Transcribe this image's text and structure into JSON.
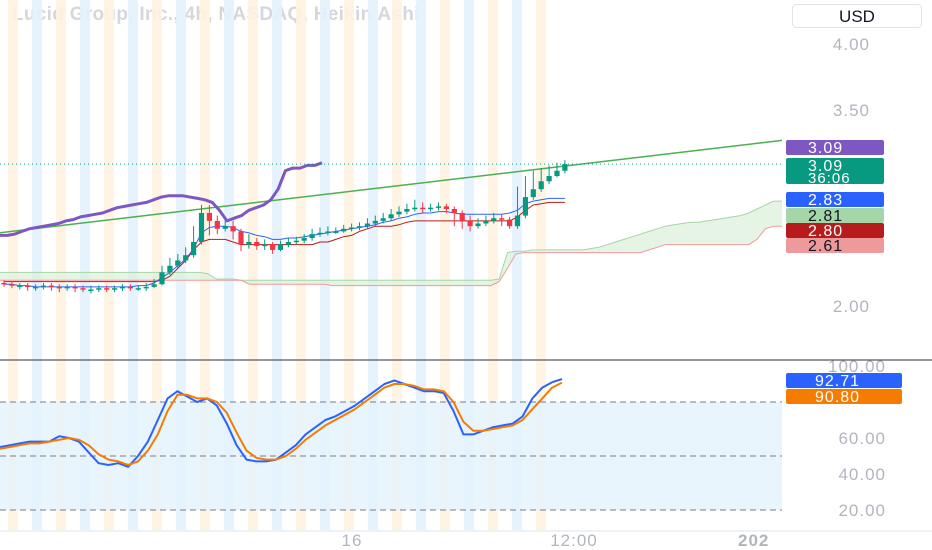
{
  "header": {
    "title": "Lucid Group, Inc., 4h, NASDAQ, Heikin Ashi",
    "currency": "USD"
  },
  "colors": {
    "up": "#089981",
    "down": "#f23645",
    "trendline": "#4caf50",
    "purple": "#7e57c2",
    "blue": "#2962ff",
    "red_line": "#b71c1c",
    "orange": "#f57c00",
    "cloud_fill": "#dcefdc",
    "stoch_band": "#e3f2fd",
    "session_orange": "#fff3e0",
    "session_blue": "#e3f2fd"
  },
  "chart_data": [
    {
      "type": "candlestick",
      "title": "Lucid Group, Inc., 4h, NASDAQ, Heikin Ashi",
      "y_ticks": [
        "4.00",
        "3.50",
        "2.00"
      ],
      "x_ticks": [
        "16",
        "12:00",
        "202"
      ],
      "price_labels": [
        {
          "text": "3.09",
          "color": "#7e57c2",
          "value": 3.09
        },
        {
          "text": "3.09",
          "sub": "36:06",
          "color": "#089981",
          "value": 3.09
        },
        {
          "text": "2.83",
          "color": "#2962ff",
          "value": 2.83
        },
        {
          "text": "2.81",
          "color": "#a5d6a7",
          "value": 2.81
        },
        {
          "text": "2.80",
          "color": "#b71c1c",
          "value": 2.8
        },
        {
          "text": "2.61",
          "color": "#ef9a9a",
          "value": 2.61
        }
      ],
      "candles": [
        [
          2.19,
          2.18,
          2.21,
          2.16
        ],
        [
          2.18,
          2.17,
          2.2,
          2.15
        ],
        [
          2.17,
          2.17,
          2.19,
          2.14
        ],
        [
          2.17,
          2.16,
          2.19,
          2.13
        ],
        [
          2.16,
          2.16,
          2.18,
          2.13
        ],
        [
          2.16,
          2.17,
          2.19,
          2.14
        ],
        [
          2.17,
          2.16,
          2.19,
          2.13
        ],
        [
          2.16,
          2.15,
          2.18,
          2.12
        ],
        [
          2.15,
          2.16,
          2.18,
          2.13
        ],
        [
          2.16,
          2.15,
          2.18,
          2.12
        ],
        [
          2.15,
          2.14,
          2.17,
          2.12
        ],
        [
          2.14,
          2.14,
          2.17,
          2.11
        ],
        [
          2.14,
          2.15,
          2.17,
          2.12
        ],
        [
          2.15,
          2.14,
          2.17,
          2.12
        ],
        [
          2.14,
          2.15,
          2.17,
          2.12
        ],
        [
          2.15,
          2.16,
          2.18,
          2.13
        ],
        [
          2.16,
          2.15,
          2.18,
          2.13
        ],
        [
          2.15,
          2.15,
          2.17,
          2.13
        ],
        [
          2.15,
          2.16,
          2.19,
          2.13
        ],
        [
          2.16,
          2.18,
          2.22,
          2.15
        ],
        [
          2.18,
          2.27,
          2.32,
          2.17
        ],
        [
          2.27,
          2.32,
          2.38,
          2.25
        ],
        [
          2.32,
          2.36,
          2.41,
          2.3
        ],
        [
          2.36,
          2.4,
          2.46,
          2.34
        ],
        [
          2.4,
          2.5,
          2.62,
          2.38
        ],
        [
          2.5,
          2.72,
          2.78,
          2.48
        ],
        [
          2.72,
          2.66,
          2.78,
          2.55
        ],
        [
          2.66,
          2.6,
          2.7,
          2.56
        ],
        [
          2.6,
          2.62,
          2.66,
          2.58
        ],
        [
          2.62,
          2.58,
          2.66,
          2.52
        ],
        [
          2.58,
          2.48,
          2.6,
          2.43
        ],
        [
          2.48,
          2.5,
          2.56,
          2.45
        ],
        [
          2.5,
          2.47,
          2.53,
          2.44
        ],
        [
          2.47,
          2.48,
          2.52,
          2.44
        ],
        [
          2.48,
          2.44,
          2.5,
          2.41
        ],
        [
          2.44,
          2.48,
          2.51,
          2.43
        ],
        [
          2.48,
          2.5,
          2.53,
          2.46
        ],
        [
          2.5,
          2.51,
          2.54,
          2.48
        ],
        [
          2.51,
          2.53,
          2.56,
          2.49
        ],
        [
          2.53,
          2.56,
          2.6,
          2.51
        ],
        [
          2.56,
          2.57,
          2.61,
          2.54
        ],
        [
          2.57,
          2.58,
          2.62,
          2.55
        ],
        [
          2.58,
          2.58,
          2.61,
          2.56
        ],
        [
          2.58,
          2.6,
          2.63,
          2.57
        ],
        [
          2.6,
          2.61,
          2.64,
          2.58
        ],
        [
          2.61,
          2.62,
          2.65,
          2.59
        ],
        [
          2.62,
          2.64,
          2.68,
          2.6
        ],
        [
          2.64,
          2.66,
          2.7,
          2.62
        ],
        [
          2.66,
          2.68,
          2.72,
          2.64
        ],
        [
          2.68,
          2.71,
          2.75,
          2.66
        ],
        [
          2.71,
          2.73,
          2.77,
          2.69
        ],
        [
          2.73,
          2.75,
          2.79,
          2.71
        ],
        [
          2.75,
          2.76,
          2.82,
          2.73
        ],
        [
          2.76,
          2.75,
          2.8,
          2.72
        ],
        [
          2.75,
          2.76,
          2.79,
          2.73
        ],
        [
          2.76,
          2.77,
          2.8,
          2.74
        ],
        [
          2.77,
          2.75,
          2.79,
          2.72
        ],
        [
          2.75,
          2.72,
          2.77,
          2.62
        ],
        [
          2.72,
          2.66,
          2.74,
          2.6
        ],
        [
          2.66,
          2.62,
          2.7,
          2.58
        ],
        [
          2.62,
          2.64,
          2.68,
          2.6
        ],
        [
          2.64,
          2.66,
          2.7,
          2.62
        ],
        [
          2.66,
          2.68,
          2.72,
          2.64
        ],
        [
          2.68,
          2.67,
          2.71,
          2.62
        ],
        [
          2.67,
          2.62,
          2.69,
          2.6
        ],
        [
          2.62,
          2.7,
          2.92,
          2.6
        ],
        [
          2.7,
          2.84,
          3.0,
          2.68
        ],
        [
          2.84,
          2.9,
          3.04,
          2.82
        ],
        [
          2.9,
          2.96,
          3.06,
          2.88
        ],
        [
          2.96,
          3.0,
          3.08,
          2.94
        ],
        [
          3.0,
          3.04,
          3.1,
          2.99
        ],
        [
          3.04,
          3.09,
          3.12,
          3.02
        ]
      ],
      "overlays": {
        "purple_line": [
          2.55,
          2.55,
          2.56,
          2.58,
          2.6,
          2.61,
          2.62,
          2.63,
          2.64,
          2.66,
          2.67,
          2.69,
          2.7,
          2.71,
          2.72,
          2.74,
          2.76,
          2.77,
          2.78,
          2.79,
          2.8,
          2.82,
          2.84,
          2.85,
          2.85,
          2.85,
          2.84,
          2.83,
          2.82,
          2.8,
          2.74,
          2.66,
          2.68,
          2.7,
          2.74,
          2.76,
          2.78,
          2.82,
          2.9,
          3.04,
          3.06,
          3.06,
          3.08,
          3.08,
          3.1
        ],
        "blue_line": [
          2.18,
          2.18,
          2.17,
          2.17,
          2.16,
          2.16,
          2.16,
          2.16,
          2.16,
          2.16,
          2.16,
          2.16,
          2.16,
          2.16,
          2.16,
          2.16,
          2.16,
          2.17,
          2.17,
          2.19,
          2.23,
          2.27,
          2.32,
          2.37,
          2.45,
          2.57,
          2.61,
          2.62,
          2.62,
          2.61,
          2.58,
          2.57,
          2.55,
          2.54,
          2.52,
          2.52,
          2.53,
          2.53,
          2.54,
          2.55,
          2.56,
          2.57,
          2.58,
          2.59,
          2.6,
          2.61,
          2.62,
          2.63,
          2.65,
          2.66,
          2.68,
          2.69,
          2.71,
          2.72,
          2.72,
          2.73,
          2.73,
          2.72,
          2.71,
          2.71,
          2.71,
          2.71,
          2.71,
          2.71,
          2.72,
          2.74,
          2.79,
          2.81,
          2.82,
          2.83,
          2.83,
          2.83
        ],
        "red_line": [
          2.2,
          2.2,
          2.2,
          2.2,
          2.2,
          2.2,
          2.2,
          2.2,
          2.2,
          2.2,
          2.2,
          2.2,
          2.2,
          2.2,
          2.2,
          2.2,
          2.2,
          2.2,
          2.2,
          2.2,
          2.21,
          2.24,
          2.3,
          2.36,
          2.44,
          2.5,
          2.52,
          2.52,
          2.52,
          2.5,
          2.48,
          2.48,
          2.48,
          2.48,
          2.48,
          2.48,
          2.48,
          2.48,
          2.48,
          2.48,
          2.5,
          2.5,
          2.52,
          2.54,
          2.55,
          2.58,
          2.6,
          2.62,
          2.62,
          2.62,
          2.63,
          2.65,
          2.66,
          2.66,
          2.66,
          2.66,
          2.66,
          2.66,
          2.66,
          2.66,
          2.66,
          2.66,
          2.66,
          2.66,
          2.66,
          2.69,
          2.74,
          2.78,
          2.79,
          2.8,
          2.8,
          2.8
        ],
        "cloud_upper": [
          2.27,
          2.27,
          2.27,
          2.27,
          2.27,
          2.27,
          2.27,
          2.27,
          2.27,
          2.27,
          2.27,
          2.27,
          2.27,
          2.27,
          2.27,
          2.27,
          2.27,
          2.27,
          2.27,
          2.27,
          2.27,
          2.27,
          2.27,
          2.27,
          2.27,
          2.26,
          2.22,
          2.22,
          2.22,
          2.21,
          2.21,
          2.21,
          2.21,
          2.21,
          2.21,
          2.21,
          2.21,
          2.21,
          2.21,
          2.21,
          2.21,
          2.21,
          2.21,
          2.21,
          2.21,
          2.21,
          2.21,
          2.21,
          2.21,
          2.21,
          2.21,
          2.21,
          2.21,
          2.21,
          2.21,
          2.21,
          2.21,
          2.21,
          2.21,
          2.21,
          2.22,
          2.42,
          2.43,
          2.43,
          2.44,
          2.44,
          2.44,
          2.44,
          2.44,
          2.44,
          2.44,
          2.45,
          2.46,
          2.48,
          2.5,
          2.52,
          2.54,
          2.56,
          2.58,
          2.6,
          2.62,
          2.63,
          2.64,
          2.65,
          2.65,
          2.66,
          2.67,
          2.68,
          2.69,
          2.7,
          2.72,
          2.75,
          2.78,
          2.81,
          2.81
        ],
        "cloud_lower": [
          2.21,
          2.21,
          2.21,
          2.21,
          2.21,
          2.21,
          2.21,
          2.21,
          2.21,
          2.21,
          2.21,
          2.21,
          2.21,
          2.21,
          2.21,
          2.21,
          2.21,
          2.21,
          2.21,
          2.21,
          2.21,
          2.21,
          2.21,
          2.21,
          2.21,
          2.21,
          2.21,
          2.21,
          2.21,
          2.21,
          2.18,
          2.18,
          2.18,
          2.18,
          2.18,
          2.18,
          2.18,
          2.18,
          2.18,
          2.18,
          2.17,
          2.17,
          2.17,
          2.17,
          2.17,
          2.17,
          2.17,
          2.17,
          2.17,
          2.17,
          2.17,
          2.17,
          2.17,
          2.17,
          2.17,
          2.17,
          2.17,
          2.17,
          2.17,
          2.17,
          2.2,
          2.3,
          2.41,
          2.42,
          2.42,
          2.42,
          2.42,
          2.42,
          2.42,
          2.42,
          2.42,
          2.42,
          2.42,
          2.42,
          2.42,
          2.42,
          2.42,
          2.42,
          2.44,
          2.46,
          2.48,
          2.48,
          2.48,
          2.48,
          2.48,
          2.48,
          2.48,
          2.48,
          2.48,
          2.48,
          2.48,
          2.52,
          2.6,
          2.62,
          2.62
        ]
      }
    },
    {
      "type": "line",
      "title": "",
      "y_ticks": [
        "100.00",
        "60.00",
        "40.00",
        "20.00"
      ],
      "ylim": [
        20,
        100
      ],
      "band": [
        20,
        80
      ],
      "dashed_levels": [
        80,
        50,
        20
      ],
      "value_labels": [
        {
          "text": "92.71",
          "color": "#2962ff"
        },
        {
          "text": "90.80",
          "color": "#f57c00"
        }
      ],
      "series": [
        {
          "color": "#2962ff",
          "values": [
            55,
            56,
            57,
            58,
            58,
            58,
            61,
            60,
            58,
            52,
            46,
            45,
            46,
            44,
            50,
            58,
            70,
            82,
            86,
            83,
            80,
            82,
            78,
            68,
            56,
            48,
            47,
            47,
            48,
            52,
            56,
            62,
            66,
            70,
            72,
            75,
            78,
            82,
            86,
            90,
            92,
            90,
            88,
            86,
            86,
            85,
            75,
            62,
            62,
            64,
            66,
            67,
            68,
            72,
            82,
            88,
            91,
            92.71
          ]
        },
        {
          "color": "#f57c00",
          "values": [
            54,
            55,
            56,
            57,
            57,
            58,
            59,
            60,
            59,
            56,
            51,
            48,
            47,
            45,
            47,
            53,
            62,
            75,
            84,
            84,
            82,
            82,
            80,
            74,
            63,
            53,
            49,
            48,
            48,
            50,
            54,
            59,
            63,
            67,
            70,
            73,
            76,
            80,
            84,
            88,
            90,
            90,
            89,
            87,
            87,
            86,
            80,
            69,
            64,
            64,
            65,
            66,
            67,
            70,
            76,
            82,
            88,
            90.8
          ]
        }
      ]
    }
  ]
}
